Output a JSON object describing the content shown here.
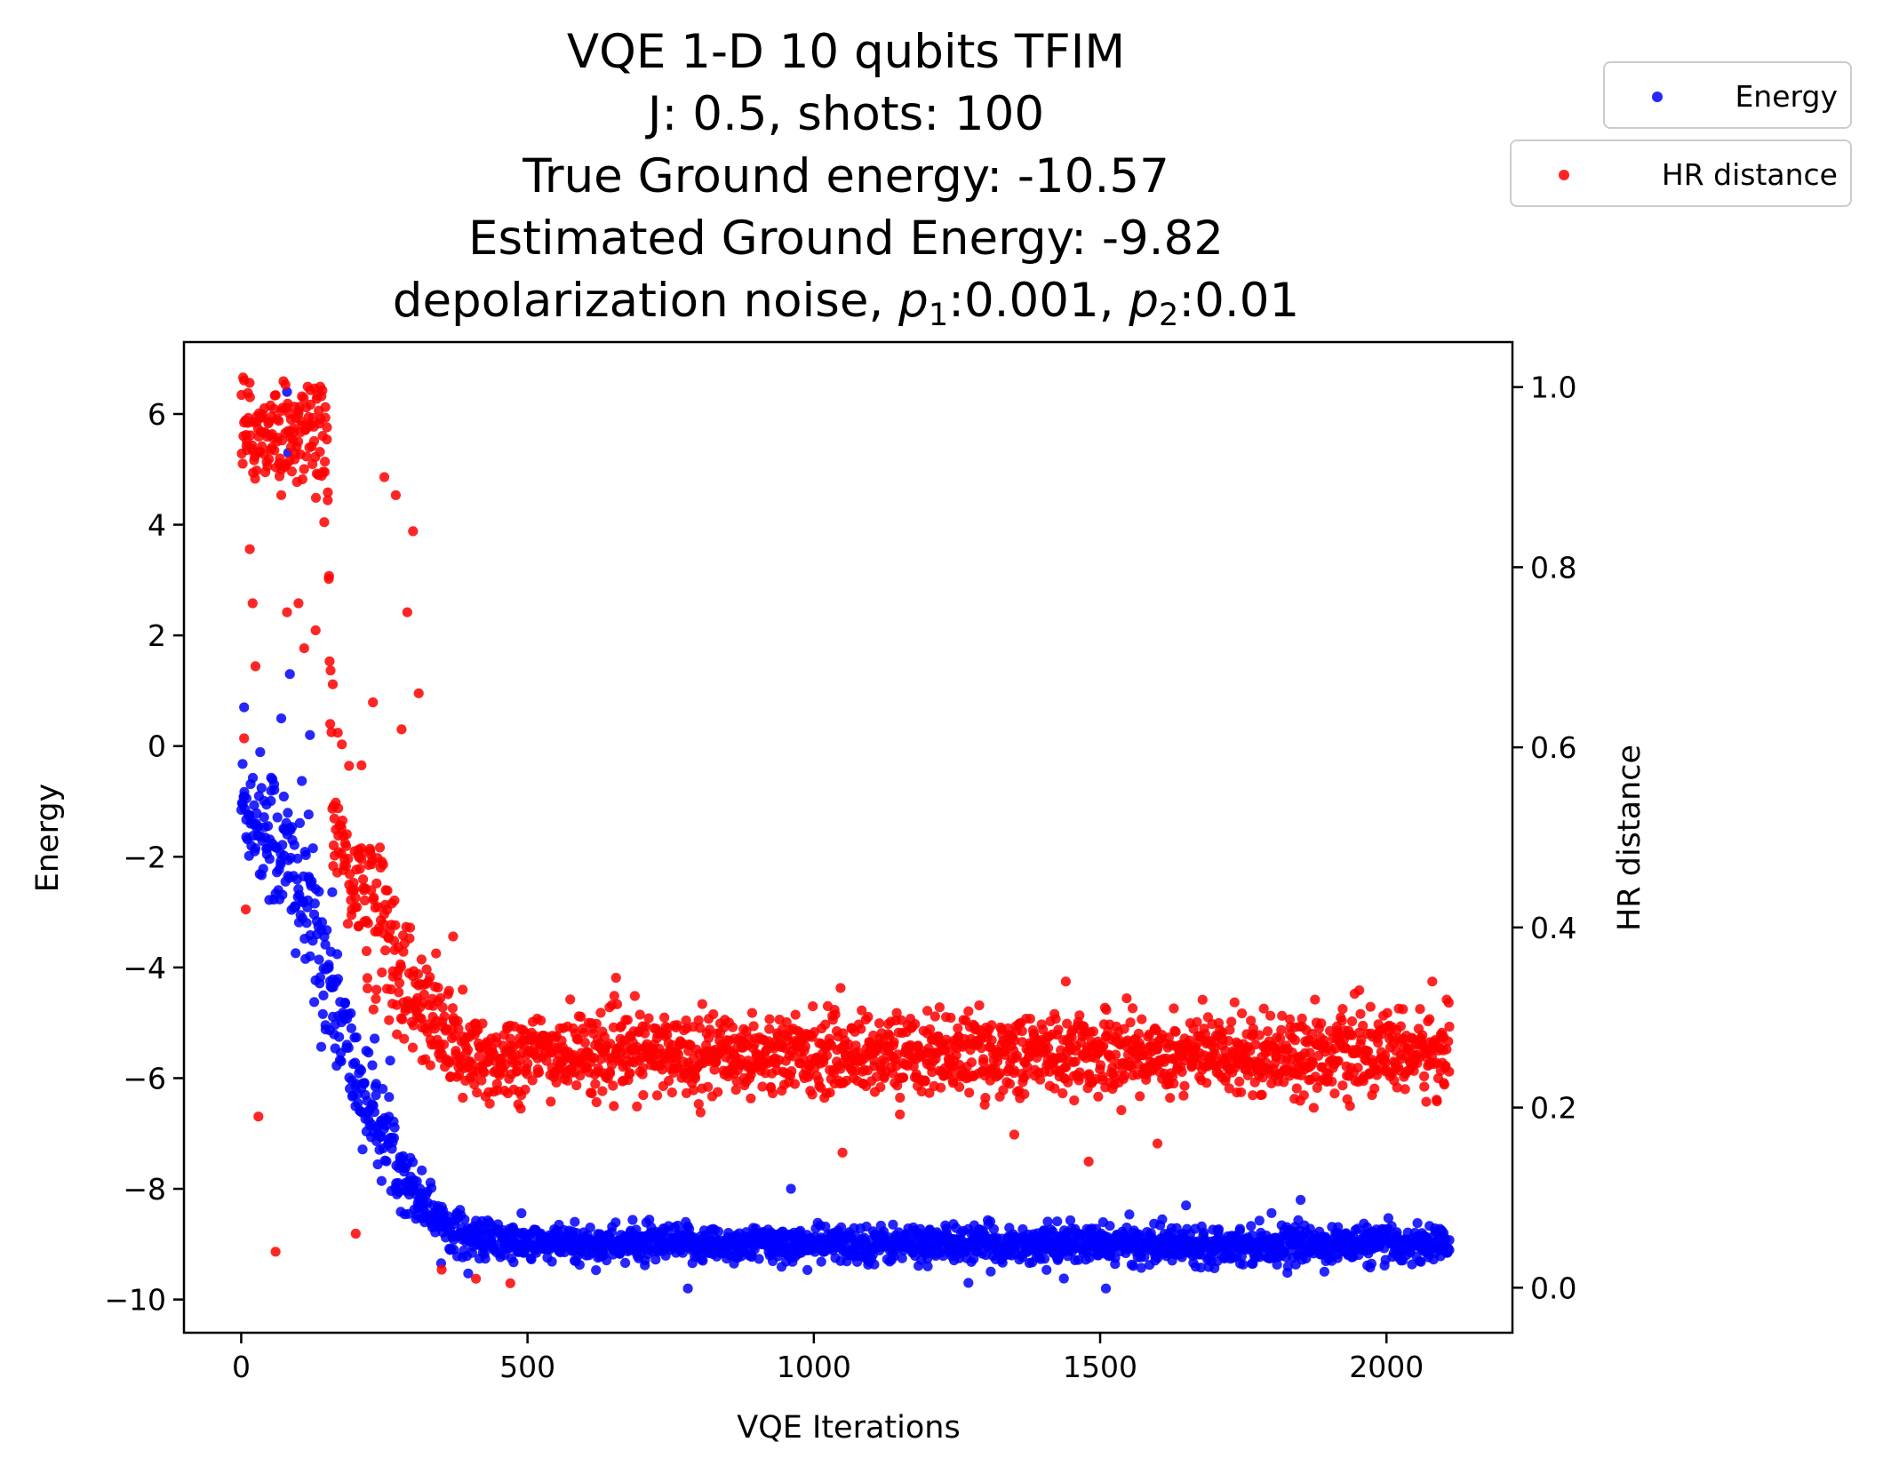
{
  "chart_data": {
    "type": "scatter",
    "title_lines": [
      "VQE 1-D 10 qubits TFIM",
      "J: 0.5, shots: 100",
      "True Ground energy: -10.57",
      "Estimated Ground Energy: -9.82"
    ],
    "title_last_line": {
      "prefix": "depolarization noise, ",
      "p1_symbol": "p",
      "p1_sub": "1",
      "p1_value": ":0.001, ",
      "p2_symbol": "p",
      "p2_sub": "2",
      "p2_value": ":0.01"
    },
    "xlabel": "VQE Iterations",
    "ylabel_left": "Energy",
    "ylabel_right": "HR distance",
    "xlim": [
      -100,
      2220
    ],
    "ylim_left": [
      -10.6,
      7.3
    ],
    "ylim_right": [
      -0.05,
      1.05
    ],
    "x_ticks": [
      0,
      500,
      1000,
      1500,
      2000
    ],
    "x_tick_labels": [
      "0",
      "500",
      "1000",
      "1500",
      "2000"
    ],
    "y_left_ticks": [
      6,
      4,
      2,
      0,
      -2,
      -4,
      -6,
      -8,
      -10
    ],
    "y_left_tick_labels": [
      "6",
      "4",
      "2",
      "0",
      "−2",
      "−4",
      "−6",
      "−8",
      "−10"
    ],
    "y_right_ticks": [
      1.0,
      0.8,
      0.6,
      0.4,
      0.2,
      0.0
    ],
    "y_right_tick_labels": [
      "1.0",
      "0.8",
      "0.6",
      "0.4",
      "0.2",
      "0.0"
    ],
    "grid": false,
    "legend_placement": "outside top-right",
    "series": [
      {
        "name": "Energy",
        "axis": "left",
        "color": "#0000ff",
        "profile": [
          {
            "x": 0,
            "center": -1.0,
            "spread": 0.9
          },
          {
            "x": 50,
            "center": -1.5,
            "spread": 1.2
          },
          {
            "x": 100,
            "center": -2.5,
            "spread": 1.4
          },
          {
            "x": 150,
            "center": -4.0,
            "spread": 1.3
          },
          {
            "x": 200,
            "center": -6.0,
            "spread": 0.9
          },
          {
            "x": 250,
            "center": -7.0,
            "spread": 0.8
          },
          {
            "x": 300,
            "center": -8.0,
            "spread": 0.5
          },
          {
            "x": 350,
            "center": -8.6,
            "spread": 0.4
          },
          {
            "x": 400,
            "center": -8.9,
            "spread": 0.35
          },
          {
            "x": 500,
            "center": -9.0,
            "spread": 0.3
          },
          {
            "x": 2110,
            "center": -9.0,
            "spread": 0.3
          }
        ],
        "outliers": [
          {
            "x": 5,
            "y": 0.7
          },
          {
            "x": 80,
            "y": 6.4
          },
          {
            "x": 82,
            "y": 5.3
          },
          {
            "x": 85,
            "y": 1.3
          },
          {
            "x": 70,
            "y": 0.5
          },
          {
            "x": 120,
            "y": 0.2
          },
          {
            "x": 780,
            "y": -9.8
          },
          {
            "x": 1270,
            "y": -9.7
          },
          {
            "x": 1510,
            "y": -9.8
          },
          {
            "x": 960,
            "y": -8.0
          },
          {
            "x": 1850,
            "y": -8.2
          },
          {
            "x": 1650,
            "y": -8.3
          }
        ]
      },
      {
        "name": "HR distance",
        "axis": "right",
        "color": "#ff0000",
        "profile": [
          {
            "x": 0,
            "center": 0.95,
            "spread": 0.05
          },
          {
            "x": 150,
            "center": 0.95,
            "spread": 0.05
          },
          {
            "x": 160,
            "center": 0.5,
            "spread": 0.08
          },
          {
            "x": 250,
            "center": 0.4,
            "spread": 0.08
          },
          {
            "x": 300,
            "center": 0.32,
            "spread": 0.06
          },
          {
            "x": 400,
            "center": 0.25,
            "spread": 0.05
          },
          {
            "x": 500,
            "center": 0.26,
            "spread": 0.04
          },
          {
            "x": 2110,
            "center": 0.26,
            "spread": 0.04
          }
        ],
        "outliers": [
          {
            "x": 10,
            "y": 0.93
          },
          {
            "x": 15,
            "y": 0.82
          },
          {
            "x": 20,
            "y": 0.76
          },
          {
            "x": 25,
            "y": 0.69
          },
          {
            "x": 5,
            "y": 0.61
          },
          {
            "x": 8,
            "y": 0.42
          },
          {
            "x": 30,
            "y": 0.19
          },
          {
            "x": 60,
            "y": 0.04
          },
          {
            "x": 70,
            "y": 0.88
          },
          {
            "x": 80,
            "y": 0.75
          },
          {
            "x": 100,
            "y": 0.76
          },
          {
            "x": 110,
            "y": 0.71
          },
          {
            "x": 130,
            "y": 0.73
          },
          {
            "x": 145,
            "y": 0.85
          },
          {
            "x": 160,
            "y": 0.67
          },
          {
            "x": 210,
            "y": 0.58
          },
          {
            "x": 230,
            "y": 0.65
          },
          {
            "x": 250,
            "y": 0.9
          },
          {
            "x": 270,
            "y": 0.88
          },
          {
            "x": 290,
            "y": 0.75
          },
          {
            "x": 300,
            "y": 0.84
          },
          {
            "x": 310,
            "y": 0.66
          },
          {
            "x": 280,
            "y": 0.62
          },
          {
            "x": 200,
            "y": 0.06
          },
          {
            "x": 350,
            "y": 0.02
          },
          {
            "x": 410,
            "y": 0.01
          },
          {
            "x": 470,
            "y": 0.005
          },
          {
            "x": 370,
            "y": 0.39
          },
          {
            "x": 1440,
            "y": 0.34
          },
          {
            "x": 2080,
            "y": 0.34
          },
          {
            "x": 1480,
            "y": 0.14
          },
          {
            "x": 1050,
            "y": 0.15
          },
          {
            "x": 1350,
            "y": 0.17
          },
          {
            "x": 1600,
            "y": 0.16
          }
        ]
      }
    ]
  }
}
